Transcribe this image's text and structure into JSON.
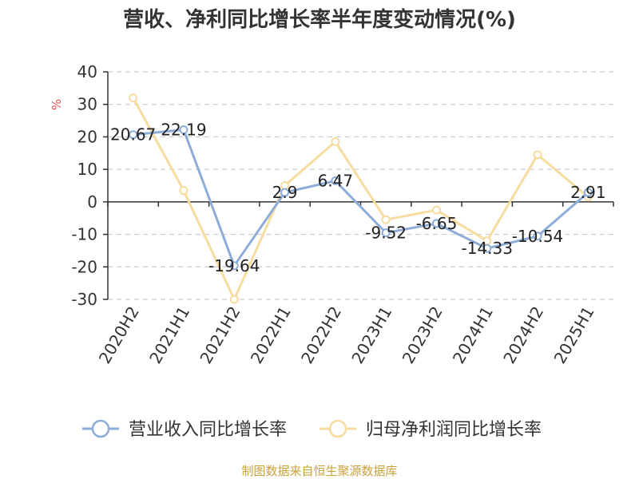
{
  "chart_data": {
    "type": "line",
    "title": "营收、净利同比增长率半年度变动情况(%)",
    "ylabel": "%",
    "categories": [
      "2020H2",
      "2021H1",
      "2021H2",
      "2022H1",
      "2022H2",
      "2023H1",
      "2023H2",
      "2024H1",
      "2024H2",
      "2025H1"
    ],
    "ylim": [
      -30,
      40
    ],
    "yticks": [
      40,
      30,
      20,
      10,
      0,
      -10,
      -20,
      -30
    ],
    "grid": true,
    "legend_position": "bottom",
    "series": [
      {
        "name": "营业收入同比增长率",
        "color": "#8eacd8",
        "values": [
          20.67,
          22.19,
          -19.64,
          2.9,
          6.47,
          -9.52,
          -6.65,
          -14.33,
          -10.54,
          2.91
        ],
        "labels": [
          "20.67",
          "22.19",
          "-19.64",
          "2.9",
          "6.47",
          "-9.52",
          "-6.65",
          "-14.33",
          "-10.54",
          "2.91"
        ]
      },
      {
        "name": "归母净利润同比增长率",
        "color": "#f7dca0",
        "values": [
          32.0,
          3.5,
          -30.0,
          5.0,
          18.5,
          -5.5,
          -2.5,
          -12.0,
          14.5,
          1.5
        ]
      }
    ]
  },
  "source": "制图数据来自恒生聚源数据库",
  "colors": {
    "unit": "#d9534f",
    "source": "#c9a33a",
    "axis": "#333333",
    "grid": "#cccccc"
  }
}
